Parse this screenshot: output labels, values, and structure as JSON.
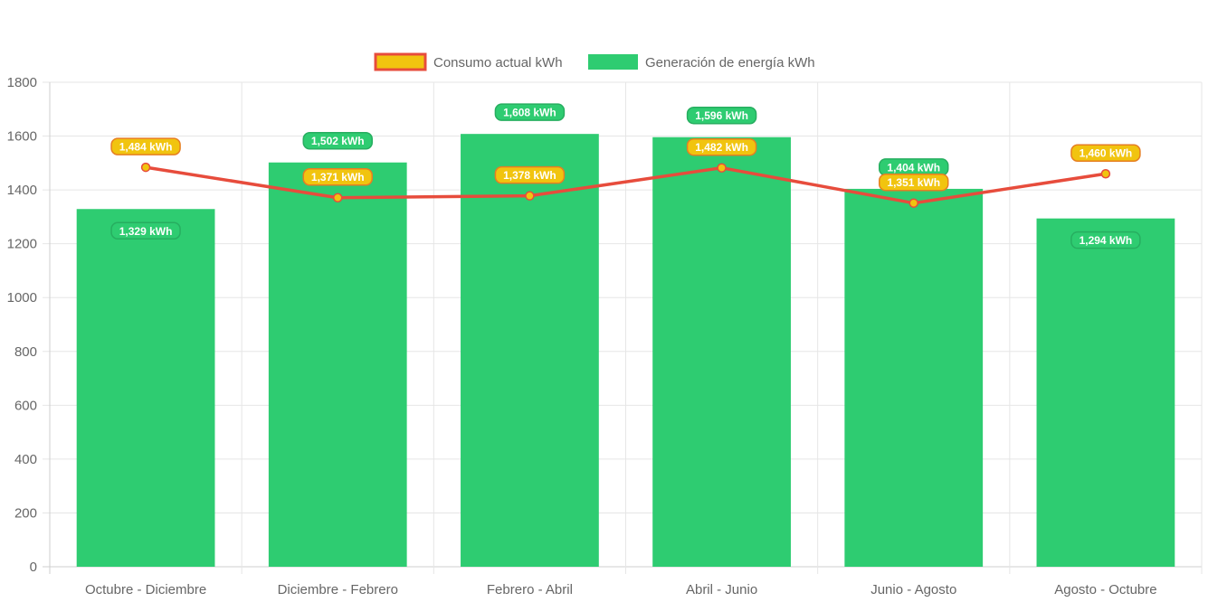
{
  "chart_data": {
    "type": "bar",
    "categories": [
      "Octubre - Diciembre",
      "Diciembre - Febrero",
      "Febrero - Abril",
      "Abril - Junio",
      "Junio - Agosto",
      "Agosto - Octubre"
    ],
    "series": [
      {
        "name": "Consumo actual kWh",
        "type": "line",
        "values": [
          1484,
          1371,
          1378,
          1482,
          1351,
          1460
        ],
        "labels": [
          "1,484 kWh",
          "1,371 kWh",
          "1,378 kWh",
          "1,482 kWh",
          "1,351 kWh",
          "1,460 kWh"
        ],
        "color": "#e74c3c",
        "fill_color": "#f1c40f"
      },
      {
        "name": "Generación de energía kWh",
        "type": "bar",
        "values": [
          1329,
          1502,
          1608,
          1596,
          1404,
          1294
        ],
        "labels": [
          "1,329 kWh",
          "1,502 kWh",
          "1,608 kWh",
          "1,596 kWh",
          "1,404 kWh",
          "1,294 kWh"
        ],
        "color": "#2ecc71"
      }
    ],
    "yticks": [
      "0",
      "200",
      "400",
      "600",
      "800",
      "1000",
      "1200",
      "1400",
      "1600",
      "1800"
    ],
    "ylim": [
      0,
      1800
    ],
    "grid": true,
    "legend": "top-center"
  }
}
